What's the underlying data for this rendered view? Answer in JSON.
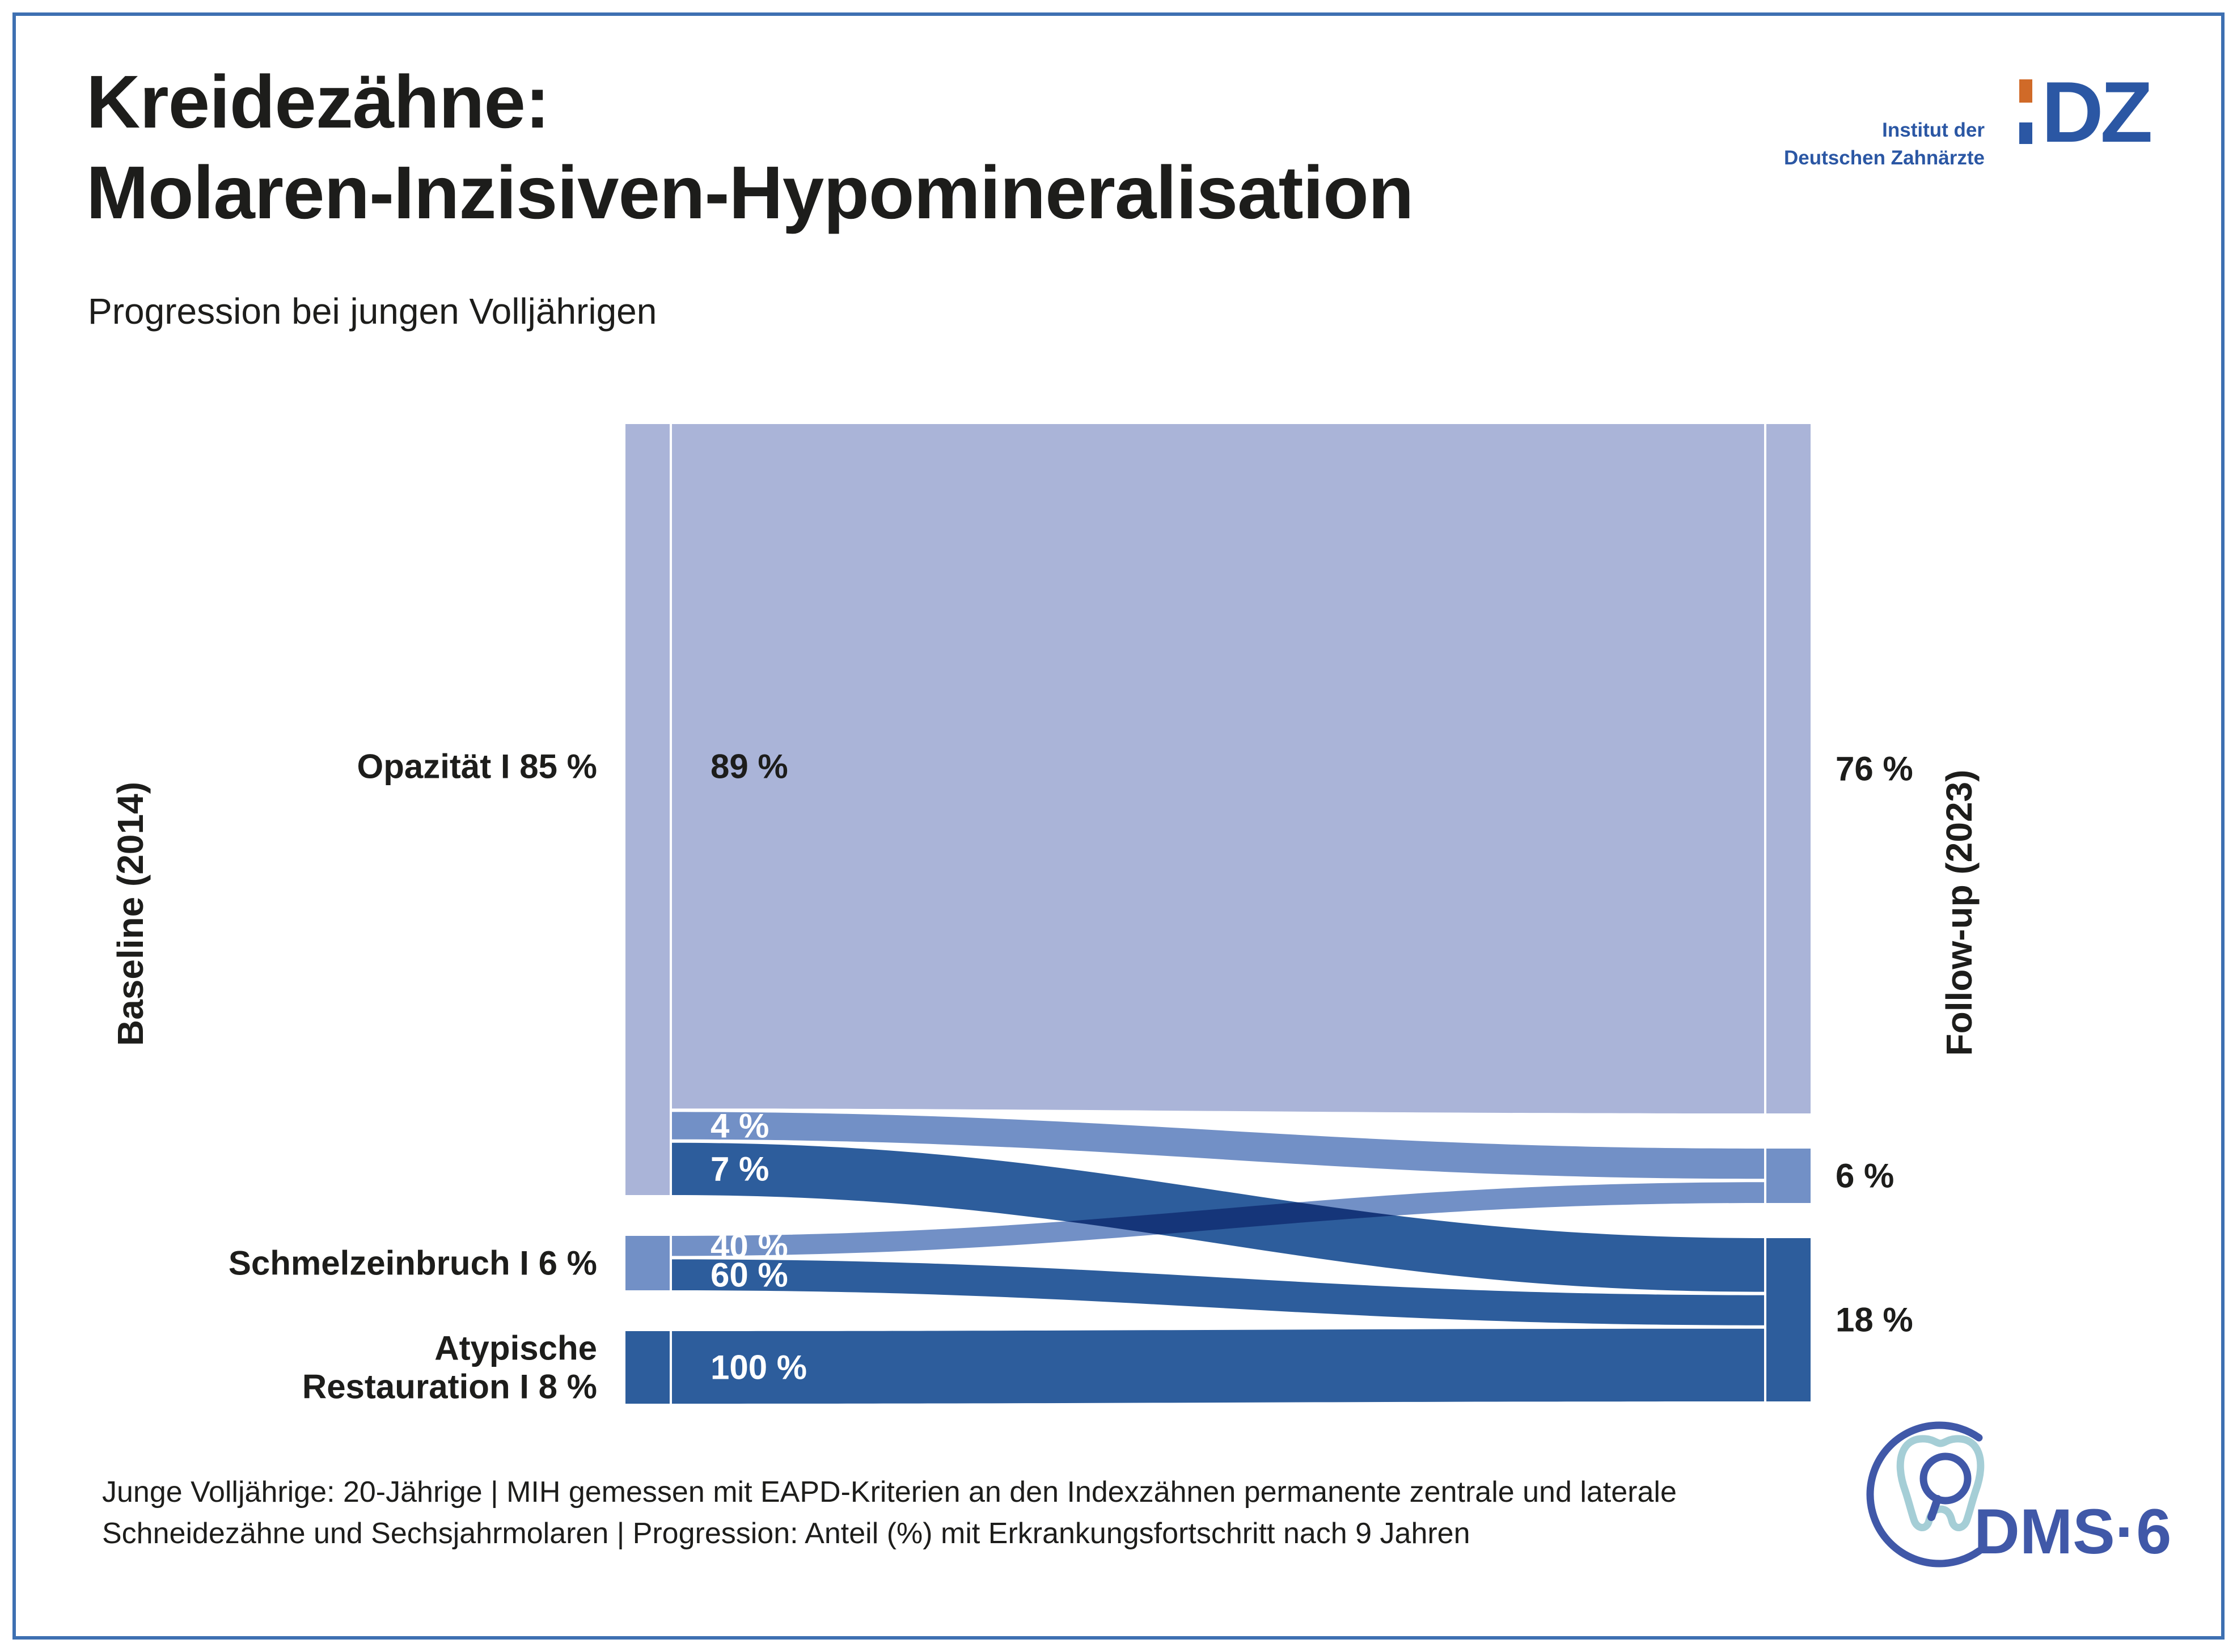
{
  "page": {
    "title_line1": "Kreidezähne:",
    "title_line2": "Molaren-Inzisiven-Hypomineralisation",
    "subtitle": "Progression bei jungen Volljährigen",
    "border_color": "#3e70b2"
  },
  "idz_logo": {
    "line1": "Institut der",
    "line2": "Deutschen Zahnärzte",
    "mark_text": "DZ",
    "blue": "#2b57a4",
    "orange": "#d06a28"
  },
  "dms_logo": {
    "text": "DMS·6",
    "blue": "#4058a8",
    "teal": "#a5ced6"
  },
  "footer": {
    "line1": "Junge Volljährige: 20-Jährige | MIH gemessen mit EAPD-Kriterien an den Indexzähnen permanente zentrale und laterale",
    "line2": "Schneidezähne und Sechsjahrmolaren | Progression: Anteil (%) mit Erkrankungsfortschritt nach 9 Jahren"
  },
  "chart_data": {
    "type": "sankey",
    "title": "Kreidezähne: Molaren-Inzisiven-Hypomineralisation — Progression bei jungen Volljährigen",
    "left_axis_label": "Baseline (2014)",
    "right_axis_label": "Follow-up (2023)",
    "colors": {
      "pale": "#aab4d8",
      "medium": "#7290c6",
      "dark": "#2d5d9c"
    },
    "left_nodes": [
      {
        "id": "opazitaet",
        "label_lines": [
          "Opazität I 85 %"
        ],
        "value_pct": 85,
        "color": "pale",
        "label_anchor": "first-link"
      },
      {
        "id": "schmelzeinbruch",
        "label_lines": [
          "Schmelzeinbruch I 6 %"
        ],
        "value_pct": 6,
        "color": "medium",
        "label_anchor": "node"
      },
      {
        "id": "atypische-restauration",
        "label_lines": [
          "Atypische",
          "Restauration I 8 %"
        ],
        "value_pct": 8,
        "color": "dark",
        "label_anchor": "node"
      }
    ],
    "right_nodes": [
      {
        "id": "opazitaet-followup",
        "label": "76 %",
        "value_pct": 76,
        "color": "pale"
      },
      {
        "id": "schmelzeinbruch-followup",
        "label": "6 %",
        "value_pct": 6,
        "color": "medium"
      },
      {
        "id": "atypische-followup",
        "label": "18 %",
        "value_pct": 18,
        "color": "dark"
      }
    ],
    "links": [
      {
        "from": 0,
        "to": 0,
        "pct_of_source": 89,
        "label": "89 %",
        "color": "pale",
        "label_color": "#1d1d1b"
      },
      {
        "from": 0,
        "to": 1,
        "pct_of_source": 4,
        "label": "4 %",
        "color": "medium",
        "label_color": "#ffffff"
      },
      {
        "from": 0,
        "to": 2,
        "pct_of_source": 7,
        "label": "7 %",
        "color": "dark",
        "label_color": "#ffffff"
      },
      {
        "from": 1,
        "to": 1,
        "pct_of_source": 40,
        "label": "40 %",
        "color": "medium",
        "label_color": "#ffffff"
      },
      {
        "from": 1,
        "to": 2,
        "pct_of_source": 60,
        "label": "60 %",
        "color": "dark",
        "label_color": "#ffffff"
      },
      {
        "from": 2,
        "to": 2,
        "pct_of_source": 100,
        "label": "100 %",
        "color": "dark",
        "label_color": "#ffffff"
      }
    ]
  }
}
